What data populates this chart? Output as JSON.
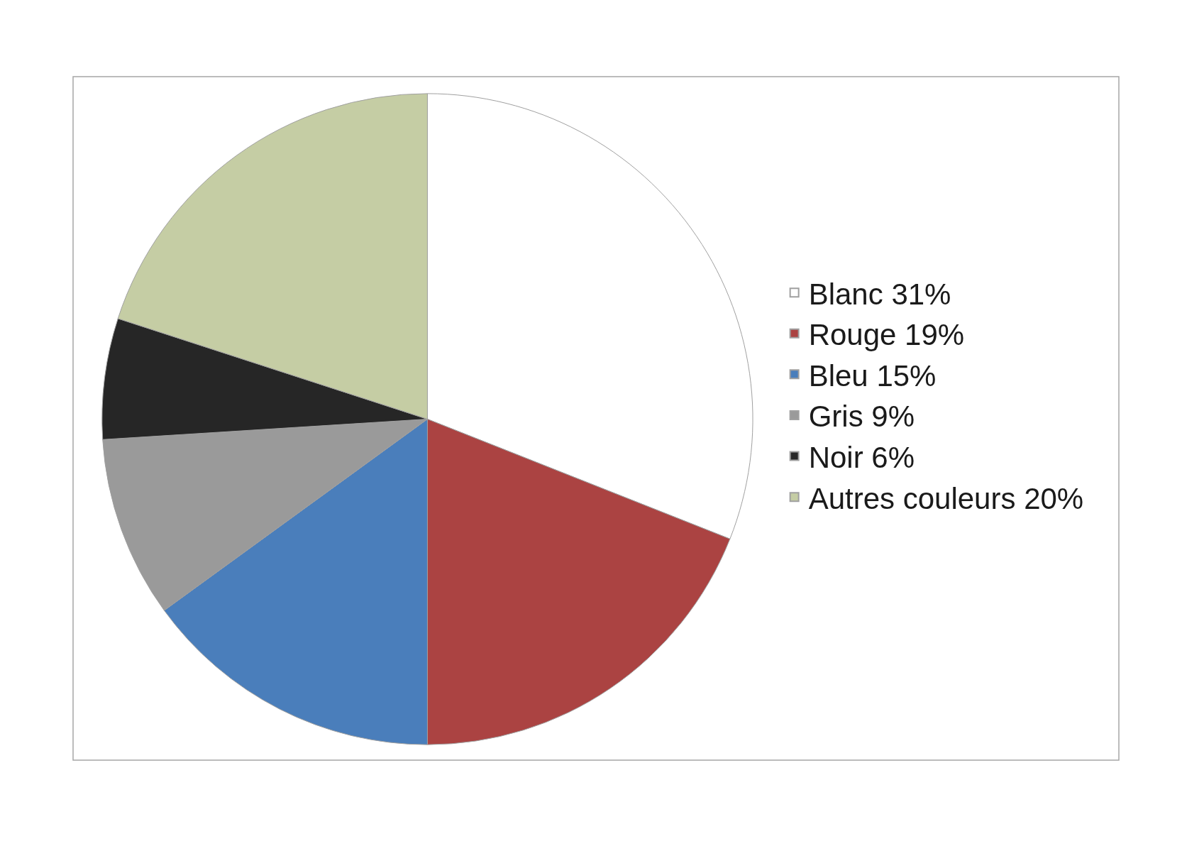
{
  "chart_data": {
    "type": "pie",
    "categories": [
      "Blanc 31%",
      "Rouge 19%",
      "Bleu 15%",
      "Gris 9%",
      "Noir 6%",
      "Autres couleurs 20%"
    ],
    "values": [
      31,
      19,
      15,
      9,
      6,
      20
    ],
    "colors": [
      "#ffffff",
      "#ab4342",
      "#4a7ebb",
      "#9a9a9a",
      "#262626",
      "#c5cda4"
    ],
    "legend": "right"
  }
}
